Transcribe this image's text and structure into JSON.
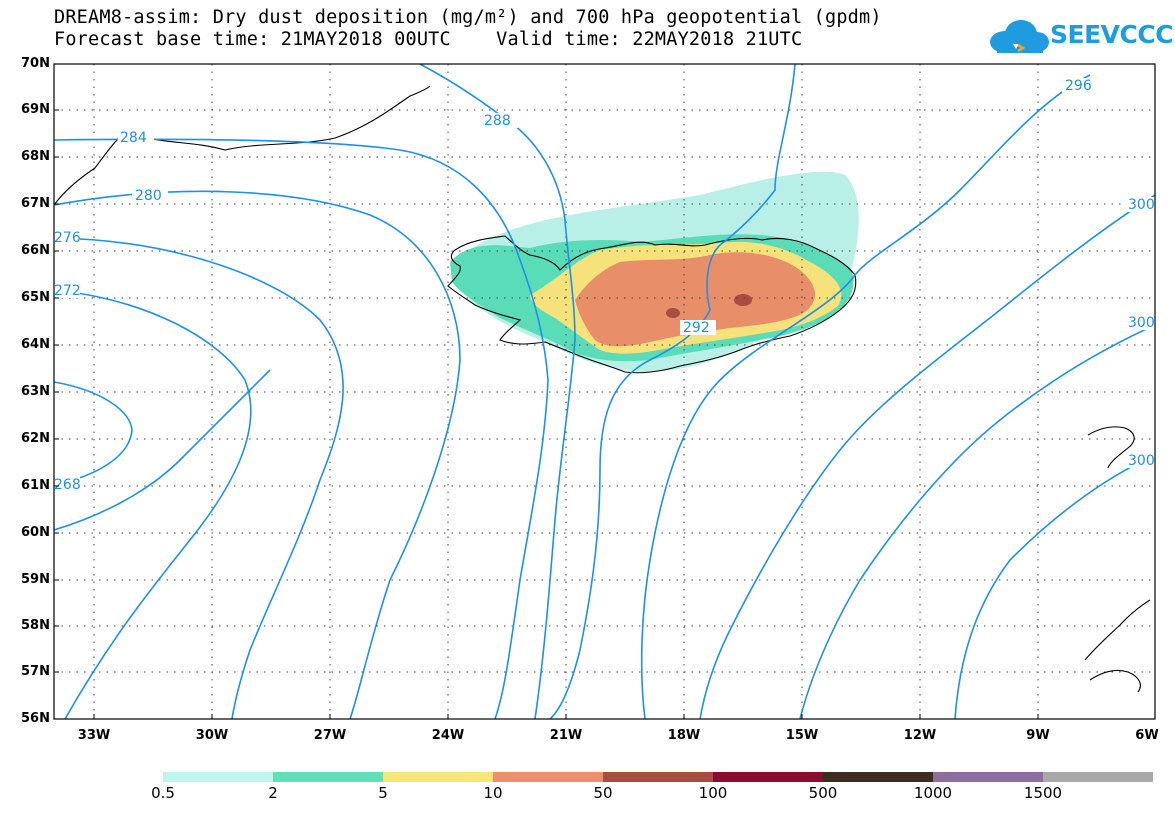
{
  "header": {
    "title_line_1": "DREAM8-assim: Dry dust deposition (mg/m²) and 700 hPa geopotential (gpdm)",
    "title_line_2": "Forecast base time: 21MAY2018 00UTC    Valid time: 22MAY2018 21UTC",
    "logo_text": "SEEVCCC",
    "logo_icon": "cloud-icon",
    "logo_color": "#1f9be0"
  },
  "map": {
    "lon_range": [
      -34,
      -6
    ],
    "lat_range": [
      56,
      70
    ],
    "lat_ticks": [
      "70N",
      "69N",
      "68N",
      "67N",
      "66N",
      "65N",
      "64N",
      "63N",
      "62N",
      "61N",
      "60N",
      "59N",
      "58N",
      "57N",
      "56N"
    ],
    "lon_ticks": [
      "33W",
      "30W",
      "27W",
      "24W",
      "21W",
      "18W",
      "15W",
      "12W",
      "9W",
      "6W"
    ],
    "contour_color": "#1e90e8",
    "contour_labels": [
      "284",
      "280",
      "276",
      "272",
      "268",
      "288",
      "292",
      "296",
      "300",
      "300",
      "300"
    ],
    "dust_colors": [
      "#b8efe7",
      "#5bdcb8",
      "#f5e27a",
      "#e88e68",
      "#a84d40"
    ]
  },
  "colorbar": {
    "colors": [
      "#c3f3ec",
      "#5fe0b8",
      "#f6e776",
      "#ec8f6a",
      "#a84d44",
      "#8c0c30",
      "#3f2c20",
      "#8e6d9e",
      "#a8a8a8"
    ],
    "labels": [
      "0.5",
      "2",
      "5",
      "10",
      "50",
      "100",
      "500",
      "1000",
      "1500"
    ]
  }
}
